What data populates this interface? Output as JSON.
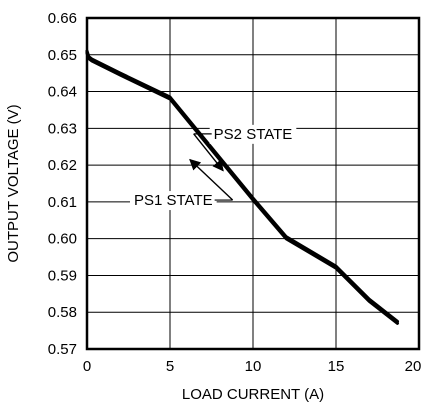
{
  "chart_data": {
    "type": "line",
    "title": "",
    "xlabel": "LOAD CURRENT (A)",
    "ylabel": "OUTPUT VOLTAGE (V)",
    "xlim": [
      0,
      20
    ],
    "ylim": [
      0.57,
      0.66
    ],
    "grid": true,
    "x_ticks": [
      0,
      5,
      10,
      15,
      20
    ],
    "y_ticks": [
      0.57,
      0.58,
      0.59,
      0.6,
      0.61,
      0.62,
      0.63,
      0.64,
      0.65,
      0.66
    ],
    "x_tick_labels": [
      "0",
      "5",
      "10",
      "15",
      "20"
    ],
    "y_tick_labels": [
      "0.57",
      "0.58",
      "0.59",
      "0.60",
      "0.61",
      "0.62",
      "0.63",
      "0.64",
      "0.65",
      "0.66"
    ],
    "series": [
      {
        "name": "PS1 STATE",
        "color": "#000000",
        "x": [
          0,
          0.1,
          0.3,
          2,
          5,
          8,
          10,
          12,
          15,
          17,
          18.7
        ],
        "y": [
          0.651,
          0.6495,
          0.6488,
          0.645,
          0.6385,
          0.622,
          0.611,
          0.6005,
          0.5925,
          0.5835,
          0.5775
        ]
      },
      {
        "name": "PS2 STATE",
        "color": "#000000",
        "x": [
          0,
          0.1,
          0.3,
          2,
          5,
          8,
          10,
          12,
          15,
          17,
          18.7
        ],
        "y": [
          0.6505,
          0.649,
          0.6483,
          0.6445,
          0.638,
          0.6215,
          0.6105,
          0.6,
          0.592,
          0.583,
          0.577
        ]
      }
    ],
    "annotations": [
      {
        "text": "PS2 STATE",
        "label_x": 10,
        "label_y": 0.6285,
        "arrow_to_x": 8.2,
        "arrow_to_y": 0.6185
      },
      {
        "text": "PS1 STATE",
        "label_x": 5.2,
        "label_y": 0.6105,
        "arrow_to_x": 6.2,
        "arrow_to_y": 0.6215
      }
    ]
  }
}
